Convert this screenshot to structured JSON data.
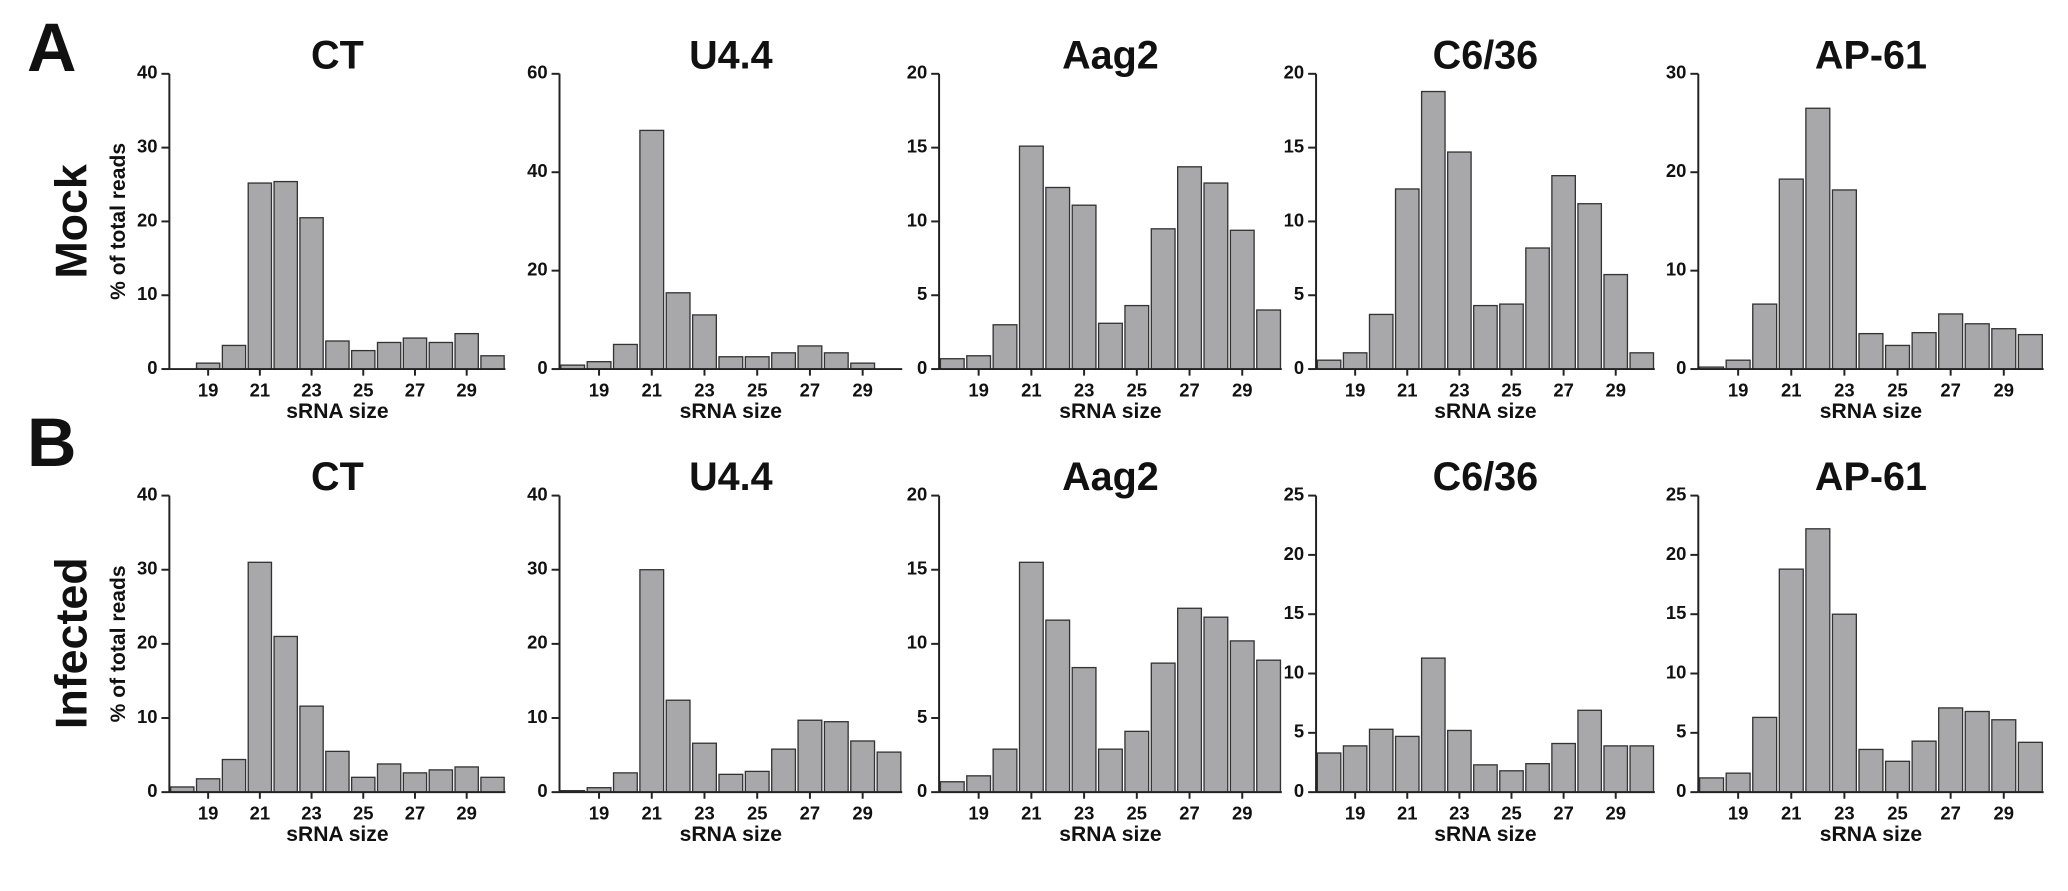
{
  "panels": [
    {
      "letter": "A",
      "row_label": "Mock"
    },
    {
      "letter": "B",
      "row_label": "Infected"
    }
  ],
  "chart_data": [
    {
      "type": "bar",
      "title": "CT",
      "categories": [
        null,
        "19",
        null,
        "21",
        null,
        "23",
        null,
        "25",
        null,
        "27",
        null,
        "29",
        null
      ],
      "values": [
        0,
        0.8,
        3.2,
        25.2,
        25.4,
        20.5,
        3.8,
        2.5,
        3.6,
        4.2,
        3.6,
        4.8,
        1.8
      ],
      "color": "#a8a8aa",
      "ylim": [
        0,
        40
      ],
      "yticks": [
        0,
        10,
        20,
        30,
        40
      ],
      "xlabel": "sRNA size",
      "ylabel": "% of total reads"
    },
    {
      "type": "bar",
      "title": "U4.4",
      "categories": [
        null,
        "19",
        null,
        "21",
        null,
        "23",
        null,
        "25",
        null,
        "27",
        null,
        "29",
        null
      ],
      "values": [
        0.8,
        1.5,
        5,
        48.5,
        15.5,
        11,
        2.5,
        2.5,
        3.3,
        4.7,
        3.3,
        1.2,
        0
      ],
      "color": "#a8a8aa",
      "ylim": [
        0,
        60
      ],
      "yticks": [
        0,
        20,
        40,
        60
      ],
      "xlabel": "sRNA size"
    },
    {
      "type": "bar",
      "title": "Aag2",
      "categories": [
        null,
        "19",
        null,
        "21",
        null,
        "23",
        null,
        "25",
        null,
        "27",
        null,
        "29",
        null
      ],
      "values": [
        0.7,
        0.9,
        3,
        15.1,
        12.3,
        11.1,
        3.1,
        4.3,
        9.5,
        13.7,
        12.6,
        9.4,
        4
      ],
      "color": "#a8a8aa",
      "ylim": [
        0,
        20
      ],
      "yticks": [
        0,
        5,
        10,
        15,
        20
      ],
      "xlabel": "sRNA size"
    },
    {
      "type": "bar",
      "title": "C6/36",
      "categories": [
        null,
        "19",
        null,
        "21",
        null,
        "23",
        null,
        "25",
        null,
        "27",
        null,
        "29",
        null
      ],
      "values": [
        0.6,
        1.1,
        3.7,
        12.2,
        18.8,
        14.7,
        4.3,
        4.4,
        8.2,
        13.1,
        11.2,
        6.4,
        1.1
      ],
      "color": "#a8a8aa",
      "ylim": [
        0,
        20
      ],
      "yticks": [
        0,
        5,
        10,
        15,
        20
      ],
      "xlabel": "sRNA size"
    },
    {
      "type": "bar",
      "title": "AP-61",
      "categories": [
        null,
        "19",
        null,
        "21",
        null,
        "23",
        null,
        "25",
        null,
        "27",
        null,
        "29",
        null
      ],
      "values": [
        0.2,
        0.9,
        6.6,
        19.3,
        26.5,
        18.2,
        3.6,
        2.4,
        3.7,
        5.6,
        4.6,
        4.1,
        3.5
      ],
      "color": "#a8a8aa",
      "ylim": [
        0,
        30
      ],
      "yticks": [
        0,
        10,
        20,
        30
      ],
      "xlabel": "sRNA size"
    },
    {
      "type": "bar",
      "title": "CT",
      "categories": [
        null,
        "19",
        null,
        "21",
        null,
        "23",
        null,
        "25",
        null,
        "27",
        null,
        "29",
        null
      ],
      "values": [
        0.7,
        1.8,
        4.4,
        31,
        21,
        11.6,
        5.5,
        2,
        3.8,
        2.6,
        3,
        3.4,
        2
      ],
      "color": "#a8a8aa",
      "ylim": [
        0,
        40
      ],
      "yticks": [
        0,
        10,
        20,
        30,
        40
      ],
      "xlabel": "sRNA size",
      "ylabel": "% of total reads"
    },
    {
      "type": "bar",
      "title": "U4.4",
      "categories": [
        null,
        "19",
        null,
        "21",
        null,
        "23",
        null,
        "25",
        null,
        "27",
        null,
        "29",
        null
      ],
      "values": [
        0.2,
        0.6,
        2.6,
        30,
        12.4,
        6.6,
        2.4,
        2.8,
        5.8,
        9.7,
        9.5,
        6.9,
        5.4
      ],
      "color": "#a8a8aa",
      "ylim": [
        0,
        40
      ],
      "yticks": [
        0,
        10,
        20,
        30,
        40
      ],
      "xlabel": "sRNA size"
    },
    {
      "type": "bar",
      "title": "Aag2",
      "categories": [
        null,
        "19",
        null,
        "21",
        null,
        "23",
        null,
        "25",
        null,
        "27",
        null,
        "29",
        null
      ],
      "values": [
        0.7,
        1.1,
        2.9,
        15.5,
        11.6,
        8.4,
        2.9,
        4.1,
        8.7,
        12.4,
        11.8,
        10.2,
        8.9
      ],
      "color": "#a8a8aa",
      "ylim": [
        0,
        20
      ],
      "yticks": [
        0,
        5,
        10,
        15,
        20
      ],
      "xlabel": "sRNA size"
    },
    {
      "type": "bar",
      "title": "C6/36",
      "categories": [
        null,
        "19",
        null,
        "21",
        null,
        "23",
        null,
        "25",
        null,
        "27",
        null,
        "29",
        null
      ],
      "values": [
        3.3,
        3.9,
        5.3,
        4.7,
        11.3,
        5.2,
        2.3,
        1.8,
        2.4,
        4.1,
        6.9,
        3.9,
        3.9
      ],
      "color": "#a8a8aa",
      "ylim": [
        0,
        25
      ],
      "yticks": [
        0,
        5,
        10,
        15,
        20,
        25
      ],
      "xlabel": "sRNA size"
    },
    {
      "type": "bar",
      "title": "AP-61",
      "categories": [
        null,
        "19",
        null,
        "21",
        null,
        "23",
        null,
        "25",
        null,
        "27",
        null,
        "29",
        null
      ],
      "values": [
        1.2,
        1.6,
        6.3,
        18.8,
        22.2,
        15,
        3.6,
        2.6,
        4.3,
        7.1,
        6.8,
        6.1,
        4.2
      ],
      "color": "#a8a8aa",
      "ylim": [
        0,
        25
      ],
      "yticks": [
        0,
        5,
        10,
        15,
        20,
        25
      ],
      "xlabel": "sRNA size"
    }
  ]
}
